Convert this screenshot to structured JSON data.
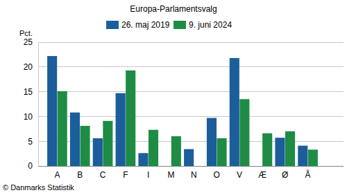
{
  "chart_data": {
    "type": "bar",
    "title": "Europa-Parlamentsvalg",
    "y_label": "Pct.",
    "footer": "© Danmarks Statistik",
    "categories": [
      "A",
      "B",
      "C",
      "F",
      "I",
      "M",
      "N",
      "O",
      "V",
      "Æ",
      "Ø",
      "Å"
    ],
    "series": [
      {
        "name": "26. maj 2019",
        "color": "#1b5e9b",
        "values": [
          22.2,
          10.8,
          5.6,
          14.7,
          2.6,
          null,
          3.4,
          9.7,
          21.8,
          null,
          5.7,
          4.1
        ]
      },
      {
        "name": "9. juni 2024",
        "color": "#1f8c45",
        "values": [
          15.1,
          8.1,
          9.1,
          19.3,
          7.3,
          6.0,
          null,
          5.6,
          13.5,
          6.6,
          7.0,
          3.3
        ]
      }
    ],
    "ylim": [
      0,
      25
    ],
    "yticks": [
      0,
      5,
      10,
      15,
      20,
      25
    ],
    "grid": true,
    "legend": "top"
  }
}
